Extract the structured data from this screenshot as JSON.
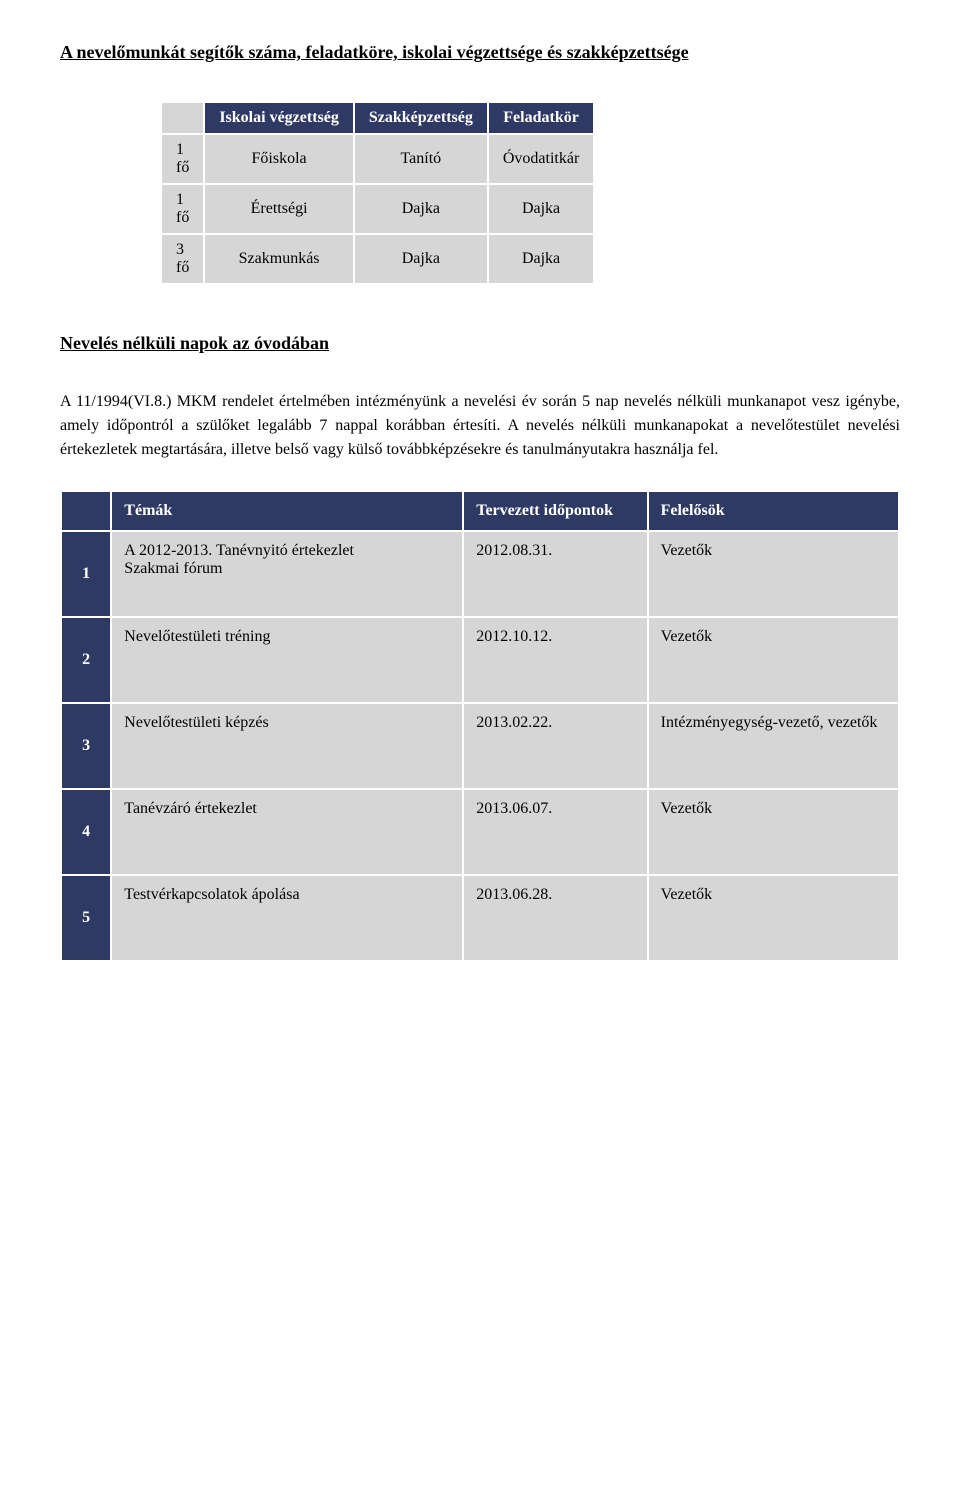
{
  "heading1": "A nevelőmunkát segítők száma, feladatköre, iskolai végzettsége és szakképzettsége",
  "table1": {
    "headers": [
      "",
      "Iskolai végzettség",
      "Szakképzettség",
      "Feladatkör"
    ],
    "rows": [
      [
        "1 fő",
        "Főiskola",
        "Tanító",
        "Óvodatitkár"
      ],
      [
        "1 fő",
        "Érettségi",
        "Dajka",
        "Dajka"
      ],
      [
        "3 fő",
        "Szakmunkás",
        "Dajka",
        "Dajka"
      ]
    ]
  },
  "heading2": "Nevelés nélküli napok az óvodában",
  "paragraph": "A 11/1994(VI.8.) MKM rendelet értelmében intézményünk a nevelési év során 5 nap nevelés nélküli munkanapot vesz igénybe, amely időpontról a szülőket legalább 7 nappal korábban értesíti. A nevelés nélküli munkanapokat a nevelőtestület nevelési értekezletek megtartására, illetve belső vagy külső továbbképzésekre és tanulmányutakra használja fel.",
  "table2": {
    "headers": [
      "",
      "Témák",
      "Tervezett időpontok",
      "Felelősök"
    ],
    "rows": [
      {
        "n": "1",
        "topic_lines": [
          "A 2012-2013. Tanévnyitó értekezlet",
          "Szakmai fórum"
        ],
        "date": "2012.08.31.",
        "resp": "Vezetők"
      },
      {
        "n": "2",
        "topic_lines": [
          "Nevelőtestületi tréning"
        ],
        "date": "2012.10.12.",
        "resp": "Vezetők"
      },
      {
        "n": "3",
        "topic_lines": [
          "Nevelőtestületi képzés"
        ],
        "date": "2013.02.22.",
        "resp": "Intézményegység-vezető, vezetők"
      },
      {
        "n": "4",
        "topic_lines": [
          "Tanévzáró értekezlet"
        ],
        "date": "2013.06.07.",
        "resp": "Vezetők"
      },
      {
        "n": "5",
        "topic_lines": [
          "Testvérkapcsolatok ápolása"
        ],
        "date": "2013.06.28.",
        "resp": "Vezetők"
      }
    ]
  }
}
